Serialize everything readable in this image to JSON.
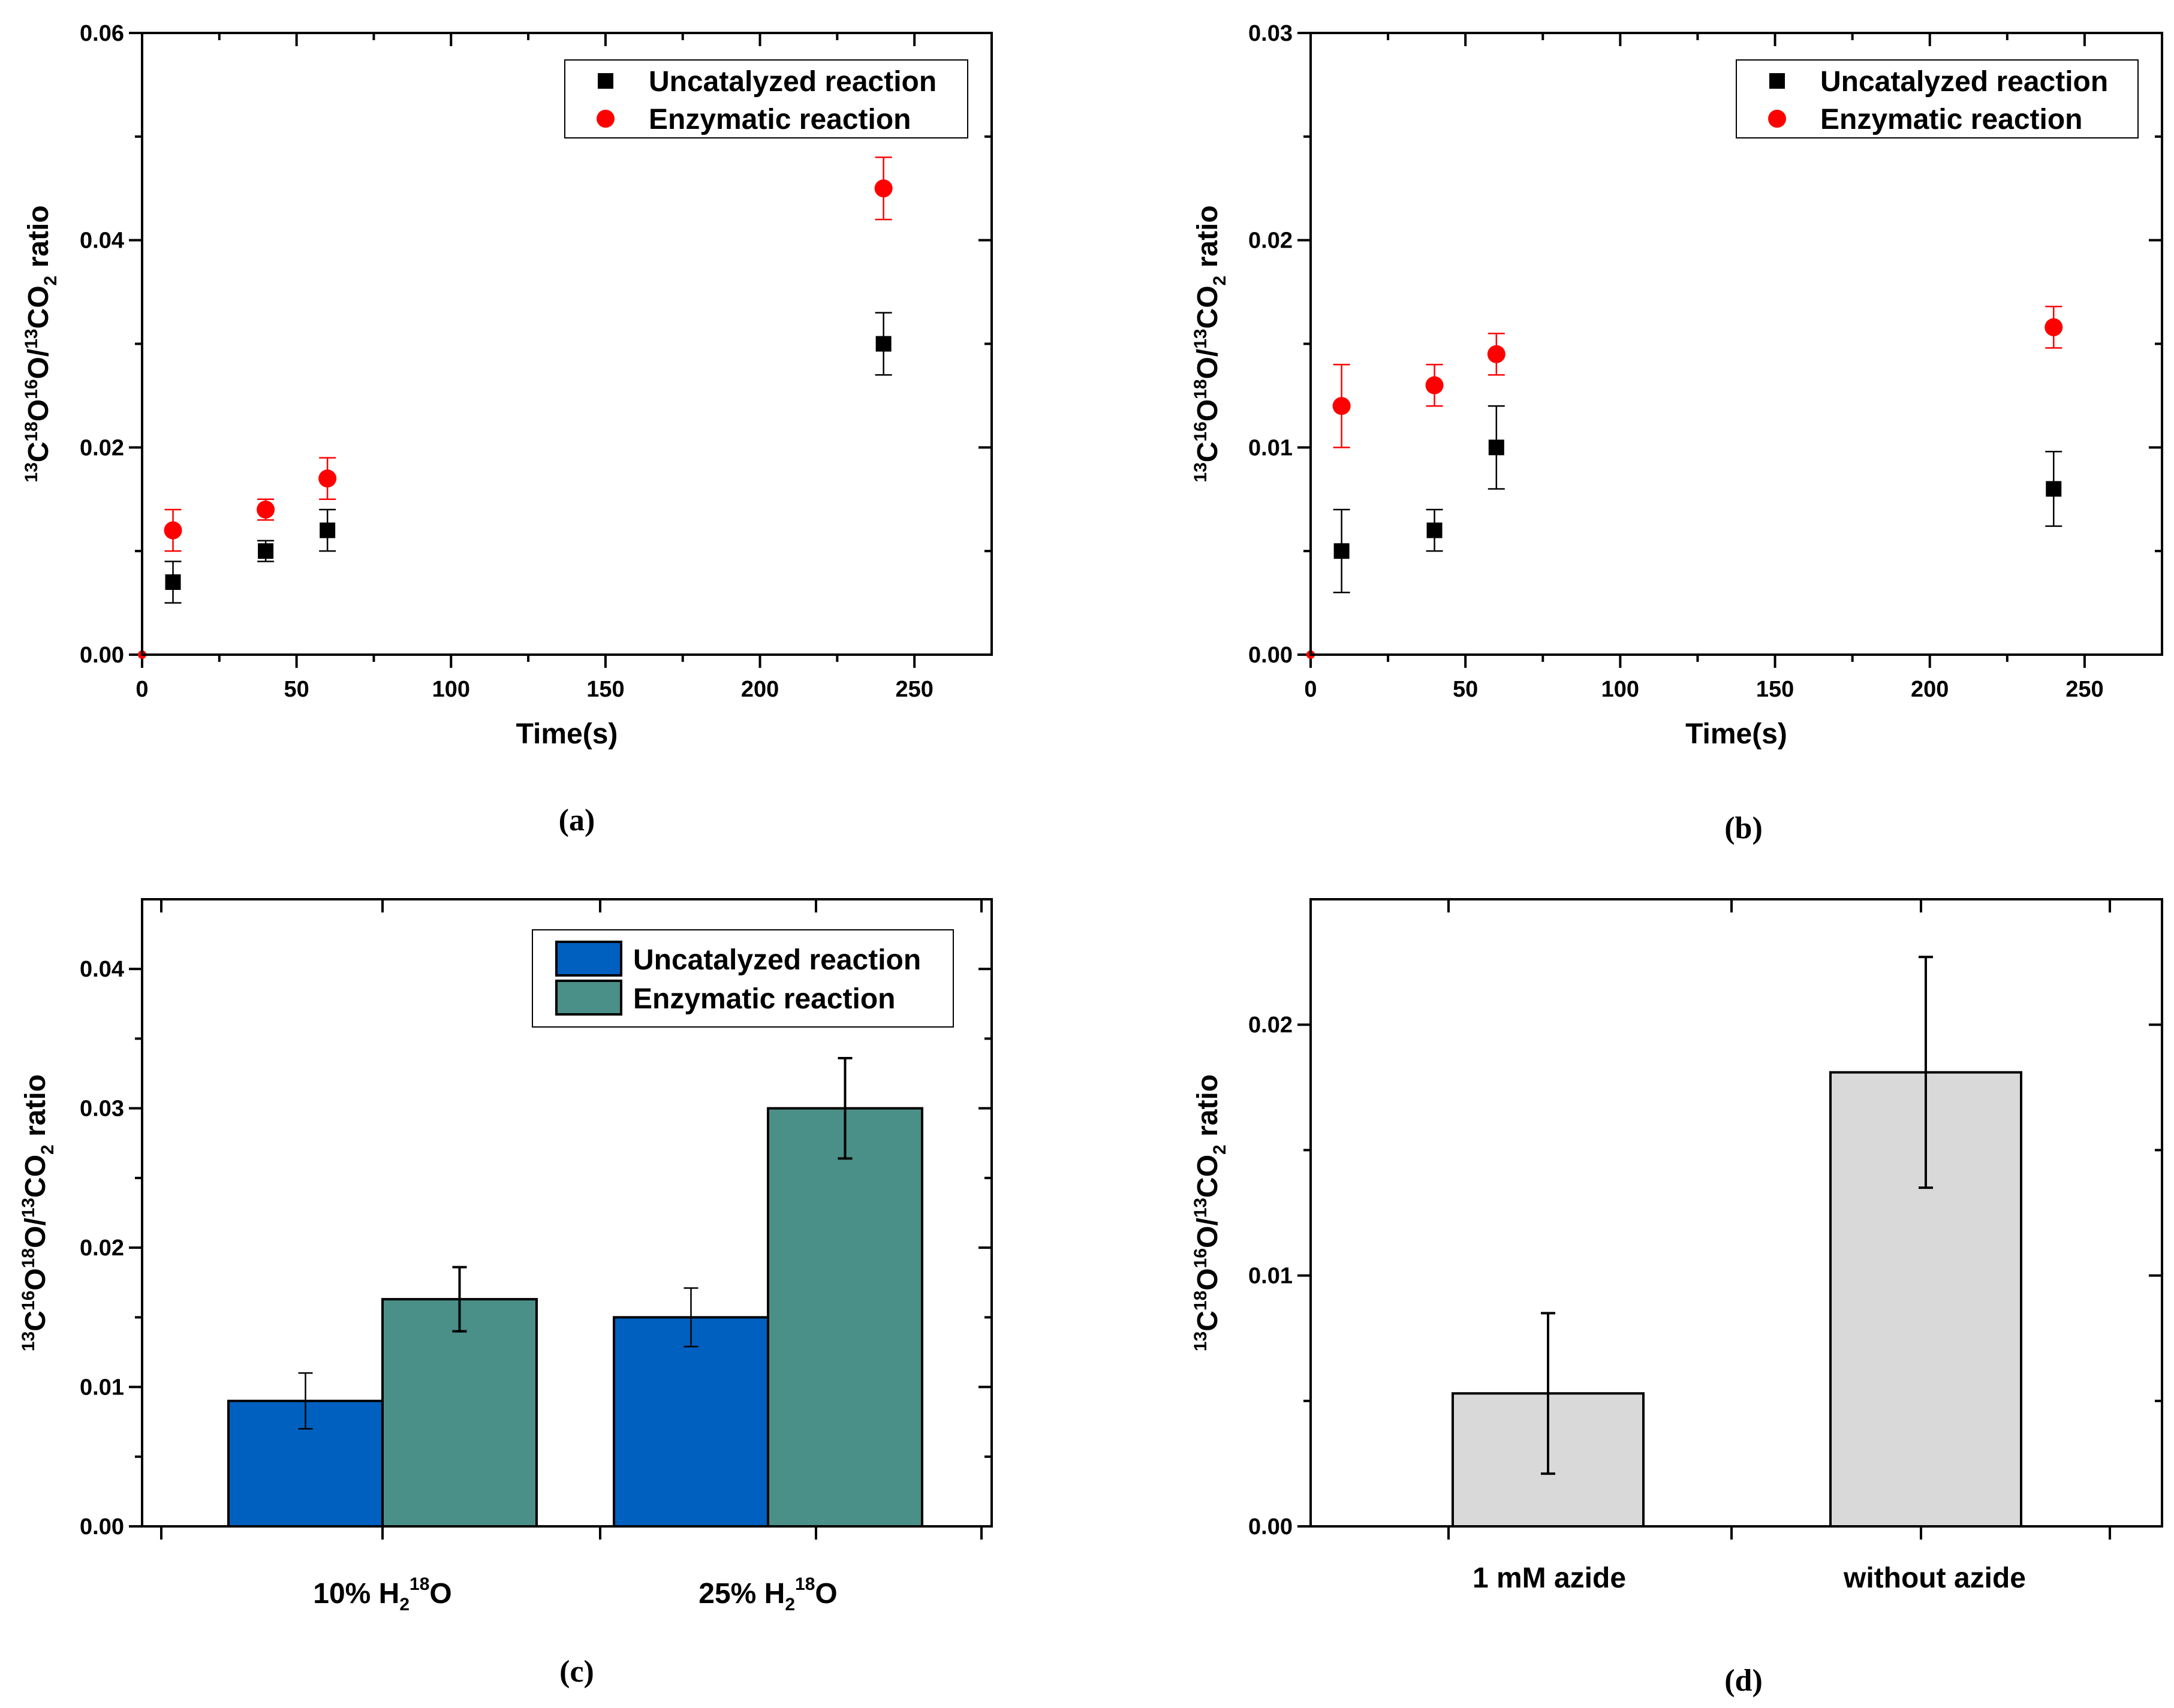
{
  "chart_data": [
    {
      "panel": "(a)",
      "type": "scatter",
      "title": "",
      "xlabel": "Time(s)",
      "ylabel": "13C18O16O/13CO2 ratio",
      "ylabel_parts": {
        "a": "13",
        "b": "C",
        "c": "18",
        "d": "O",
        "e": "16",
        "f": "O/",
        "g": "13",
        "h": "CO",
        "i": "2",
        "j": " ratio"
      },
      "xlim": [
        0,
        275
      ],
      "ylim": [
        0,
        0.06
      ],
      "xticks": [
        "0",
        "50",
        "100",
        "150",
        "200",
        "250"
      ],
      "yticks": [
        "0.00",
        "0.02",
        "0.04",
        "0.06"
      ],
      "legend_position": "top-right",
      "series": [
        {
          "name": "Uncatalyzed reaction",
          "marker": "square",
          "color": "#000000",
          "x": [
            0,
            10,
            40,
            60,
            240
          ],
          "y": [
            0,
            0.007,
            0.01,
            0.012,
            0.03
          ],
          "err": [
            0,
            0.002,
            0.001,
            0.002,
            0.003
          ]
        },
        {
          "name": "Enzymatic reaction",
          "marker": "circle",
          "color": "#ff0000",
          "x": [
            0,
            10,
            40,
            60,
            240
          ],
          "y": [
            0,
            0.012,
            0.014,
            0.017,
            0.045
          ],
          "err": [
            0,
            0.002,
            0.001,
            0.002,
            0.003
          ]
        }
      ]
    },
    {
      "panel": "(b)",
      "type": "scatter",
      "title": "",
      "xlabel": "Time(s)",
      "ylabel": "13C16O18O/13CO2 ratio",
      "ylabel_parts": {
        "a": "13",
        "b": "C",
        "c": "16",
        "d": "O",
        "e": "18",
        "f": "O/",
        "g": "13",
        "h": "CO",
        "i": "2",
        "j": " ratio"
      },
      "xlim": [
        0,
        275
      ],
      "ylim": [
        0,
        0.03
      ],
      "xticks": [
        "0",
        "50",
        "100",
        "150",
        "200",
        "250"
      ],
      "yticks": [
        "0.00",
        "0.01",
        "0.02",
        "0.03"
      ],
      "legend_position": "top-right",
      "series": [
        {
          "name": "Uncatalyzed reaction",
          "marker": "square",
          "color": "#000000",
          "x": [
            0,
            10,
            40,
            60,
            240
          ],
          "y": [
            0,
            0.005,
            0.006,
            0.01,
            0.008
          ],
          "err": [
            0,
            0.002,
            0.001,
            0.002,
            0.0018
          ]
        },
        {
          "name": "Enzymatic reaction",
          "marker": "circle",
          "color": "#ff0000",
          "x": [
            0,
            10,
            40,
            60,
            240
          ],
          "y": [
            0,
            0.012,
            0.013,
            0.0145,
            0.0158
          ],
          "err": [
            0,
            0.002,
            0.001,
            0.001,
            0.001
          ]
        }
      ]
    },
    {
      "panel": "(c)",
      "type": "bar",
      "title": "",
      "xlabel": "",
      "ylabel": "13C16O18O/13CO2 ratio",
      "ylabel_parts": {
        "a": "13",
        "b": "C",
        "c": "16",
        "d": "O",
        "e": "18",
        "f": "O/",
        "g": "13",
        "h": "CO",
        "i": "2",
        "j": " ratio"
      },
      "ylim": [
        0,
        0.045
      ],
      "yticks": [
        "0.00",
        "0.01",
        "0.02",
        "0.03",
        "0.04"
      ],
      "categories": [
        "10% H218O",
        "25% H218O"
      ],
      "category_parts": [
        {
          "pre": "10% H",
          "sub": "2",
          "sup": "18",
          "post": "O"
        },
        {
          "pre": "25% H",
          "sub": "2",
          "sup": "18",
          "post": "O"
        }
      ],
      "legend_position": "top-right",
      "series": [
        {
          "name": "Uncatalyzed reaction",
          "color": "#0060c0",
          "values": [
            0.009,
            0.015
          ],
          "err": [
            0.002,
            0.0021
          ]
        },
        {
          "name": "Enzymatic reaction",
          "color": "#4a8f88",
          "values": [
            0.0163,
            0.03
          ],
          "err": [
            0.0023,
            0.0036
          ]
        }
      ]
    },
    {
      "panel": "(d)",
      "type": "bar",
      "title": "",
      "xlabel": "",
      "ylabel": "13C18O16O/13CO2 ratio",
      "ylabel_parts": {
        "a": "13",
        "b": "C",
        "c": "18",
        "d": "O",
        "e": "16",
        "f": "O/",
        "g": "13",
        "h": "CO",
        "i": "2",
        "j": " ratio"
      },
      "ylim": [
        0,
        0.025
      ],
      "yticks": [
        "0.00",
        "0.01",
        "0.02"
      ],
      "categories": [
        "1 mM azide",
        "without azide"
      ],
      "series": [
        {
          "name": "",
          "color": "#d9d9d9",
          "values": [
            0.0053,
            0.0181
          ],
          "err": [
            0.0032,
            0.0046
          ]
        }
      ]
    }
  ]
}
